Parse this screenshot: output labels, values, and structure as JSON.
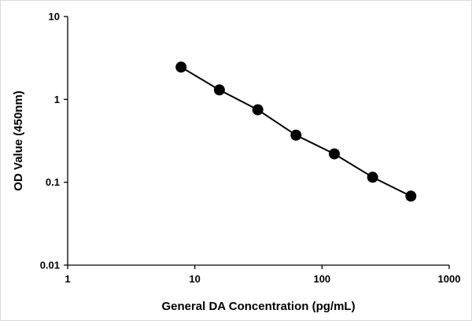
{
  "chart_data": {
    "type": "line",
    "title": "",
    "xlabel": "General DA Concentration (pg/mL)",
    "ylabel": "OD Value (450nm)",
    "x_scale": "log",
    "y_scale": "log",
    "xlim": [
      1,
      1000
    ],
    "ylim": [
      0.01,
      10
    ],
    "x_ticks": [
      "1",
      "10",
      "100",
      "1000"
    ],
    "y_ticks": [
      "0.01",
      "0.1",
      "1",
      "10"
    ],
    "grid": false,
    "legend": "none",
    "series": [
      {
        "x": [
          7.8,
          15.6,
          31.25,
          62.5,
          125,
          250,
          500
        ],
        "y": [
          2.45,
          1.3,
          0.75,
          0.37,
          0.22,
          0.115,
          0.068
        ]
      }
    ],
    "colors": {
      "line": "#000000",
      "marker": "#000000",
      "axis": "#000000"
    }
  }
}
